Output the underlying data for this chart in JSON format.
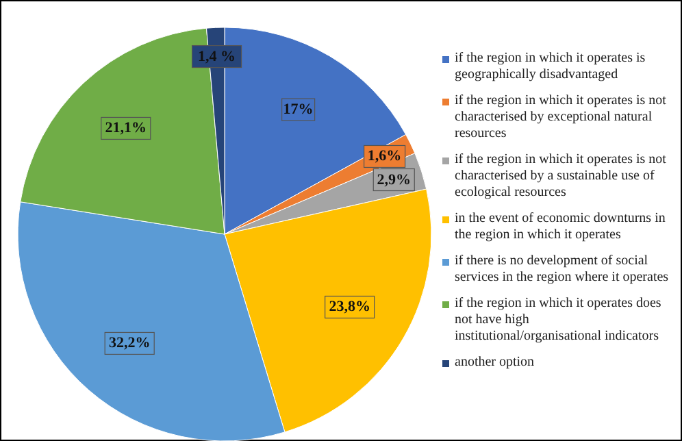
{
  "chart_data": {
    "type": "pie",
    "categories": [
      "if the region in which it operates is geographically disadvantaged",
      "if the region in which it operates is not characterised by exceptional natural resources",
      "if the region in which it operates is not characterised by a sustainable use of ecological resources",
      "in the event of economic downturns in the region in which it operates",
      "if there is no development of social services in the region where it operates",
      "if the region in which it operates does not have high institutional/organisational indicators",
      "another option"
    ],
    "values": [
      17,
      1.6,
      2.9,
      23.8,
      32.2,
      21.1,
      1.4
    ],
    "value_labels": [
      "17%",
      "1,6%",
      "2,9%",
      "23,8%",
      "32,2%",
      "21,1%",
      "1,4 %"
    ],
    "colors": [
      "#4472c4",
      "#ed7d31",
      "#a5a5a5",
      "#ffc000",
      "#5b9bd5",
      "#70ad47",
      "#264478"
    ],
    "legend": "right"
  }
}
